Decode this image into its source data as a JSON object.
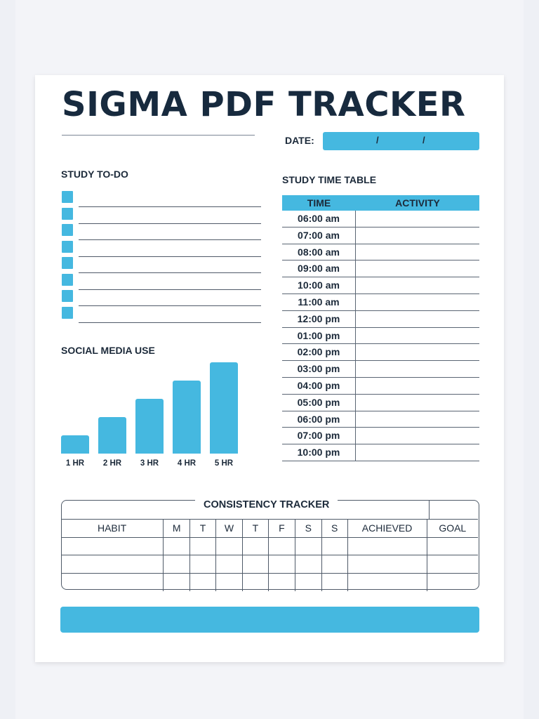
{
  "title": "SIGMA PDF TRACKER",
  "date": {
    "label": "DATE:",
    "separator": "/"
  },
  "todo": {
    "label": "STUDY TO-DO",
    "item_count": 8
  },
  "social_media": {
    "label": "SOCIAL MEDIA USE",
    "bar_color": "#45b8e0"
  },
  "chart_data": {
    "type": "bar",
    "categories": [
      "1 HR",
      "2 HR",
      "3 HR",
      "4 HR",
      "5 HR"
    ],
    "values": [
      1,
      2,
      3,
      4,
      5
    ],
    "title": "SOCIAL MEDIA USE",
    "xlabel": "",
    "ylabel": "",
    "ylim": [
      0,
      5
    ],
    "grid": false
  },
  "timetable": {
    "label": "STUDY TIME TABLE",
    "headers": [
      "TIME",
      "ACTIVITY"
    ],
    "times": [
      "06:00 am",
      "07:00 am",
      "08:00 am",
      "09:00 am",
      "10:00 am",
      "11:00 am",
      "12:00 pm",
      "01:00 pm",
      "02:00 pm",
      "03:00 pm",
      "04:00 pm",
      "05:00 pm",
      "06:00 pm",
      "07:00 pm",
      "10:00 pm"
    ]
  },
  "consistency": {
    "title": "CONSISTENCY TRACKER",
    "headers": [
      "HABIT",
      "M",
      "T",
      "W",
      "T",
      "F",
      "S",
      "S",
      "ACHIEVED",
      "GOAL"
    ],
    "row_count": 3
  },
  "colors": {
    "accent": "#45b8e0",
    "text": "#1c2a3a"
  }
}
